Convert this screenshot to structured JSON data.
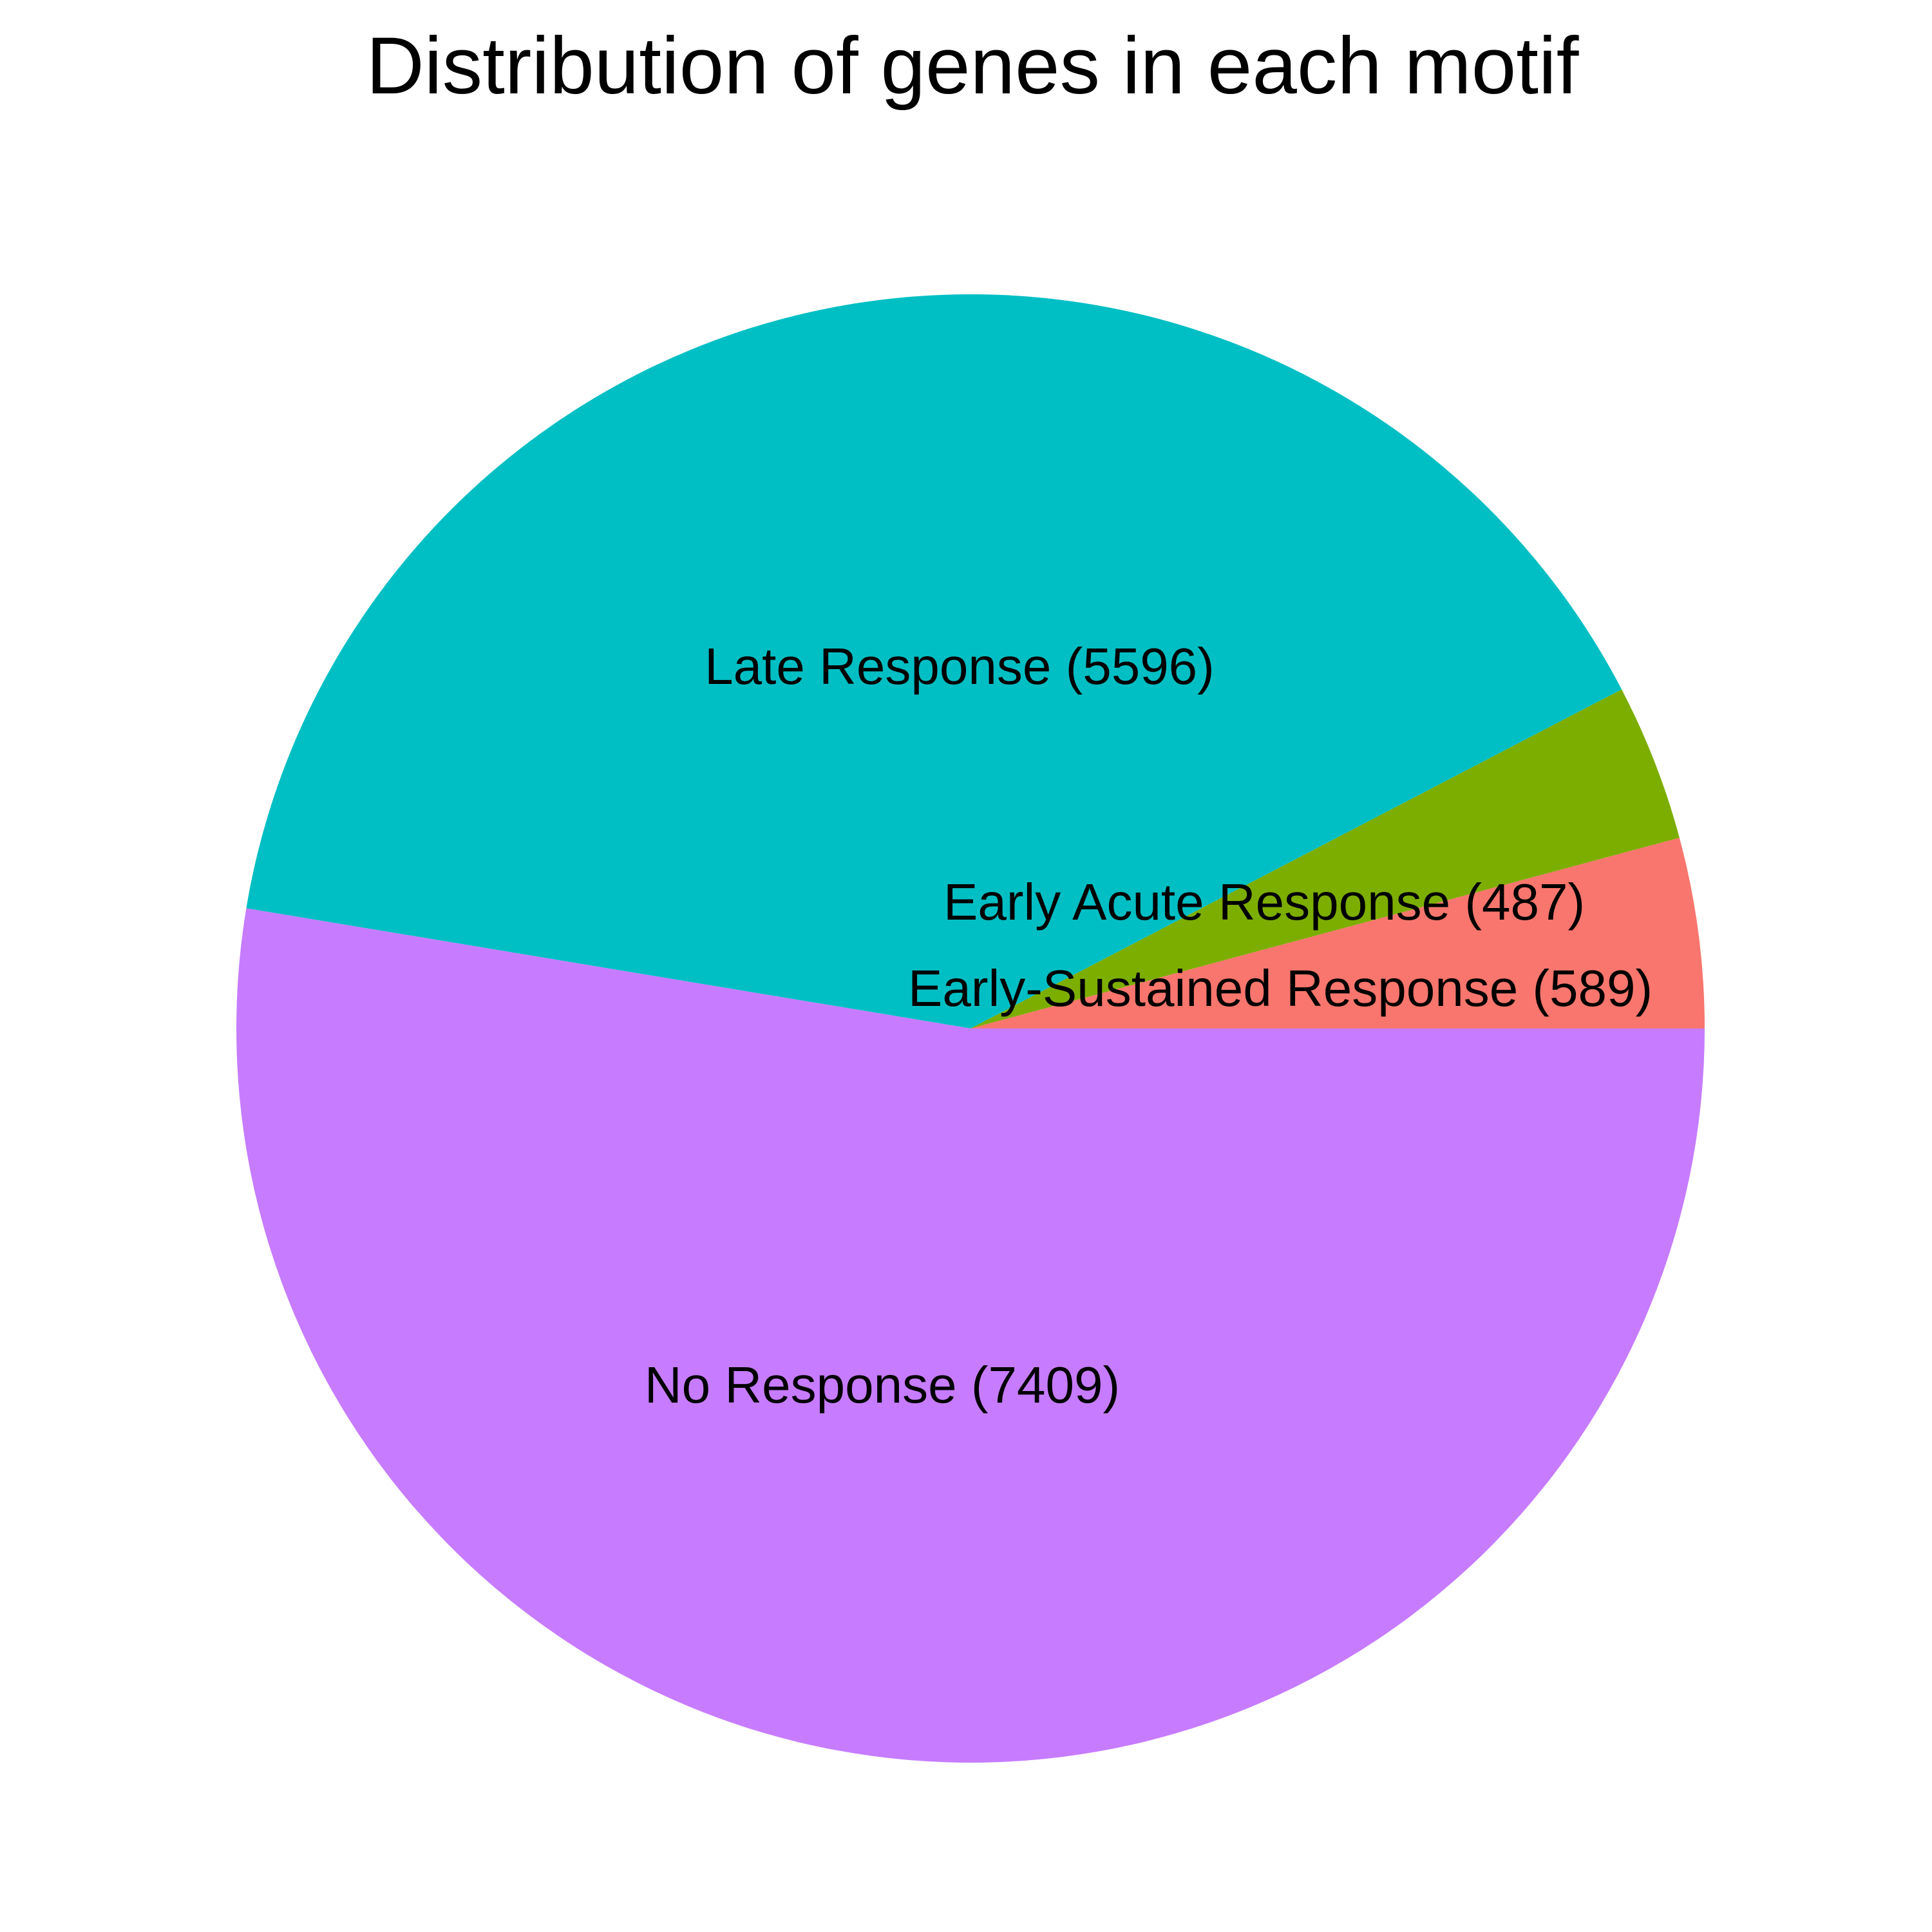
{
  "chart_data": {
    "type": "pie",
    "title": "Distribution of genes in each motif",
    "start_angle": "0 degrees (3 o'clock), counterclockwise",
    "slices": [
      {
        "label": "Early-Sustained Response (589)",
        "category": "Early-Sustained Response",
        "value": 589,
        "color": "#F8766D"
      },
      {
        "label": "Early Acute Response (487)",
        "category": "Early Acute Response",
        "value": 487,
        "color": "#7CAE00"
      },
      {
        "label": "Late Response (5596)",
        "category": "Late Response",
        "value": 5596,
        "color": "#00BFC4"
      },
      {
        "label": "No Response (7409)",
        "category": "No Response",
        "value": 7409,
        "color": "#C77CFF"
      }
    ]
  }
}
